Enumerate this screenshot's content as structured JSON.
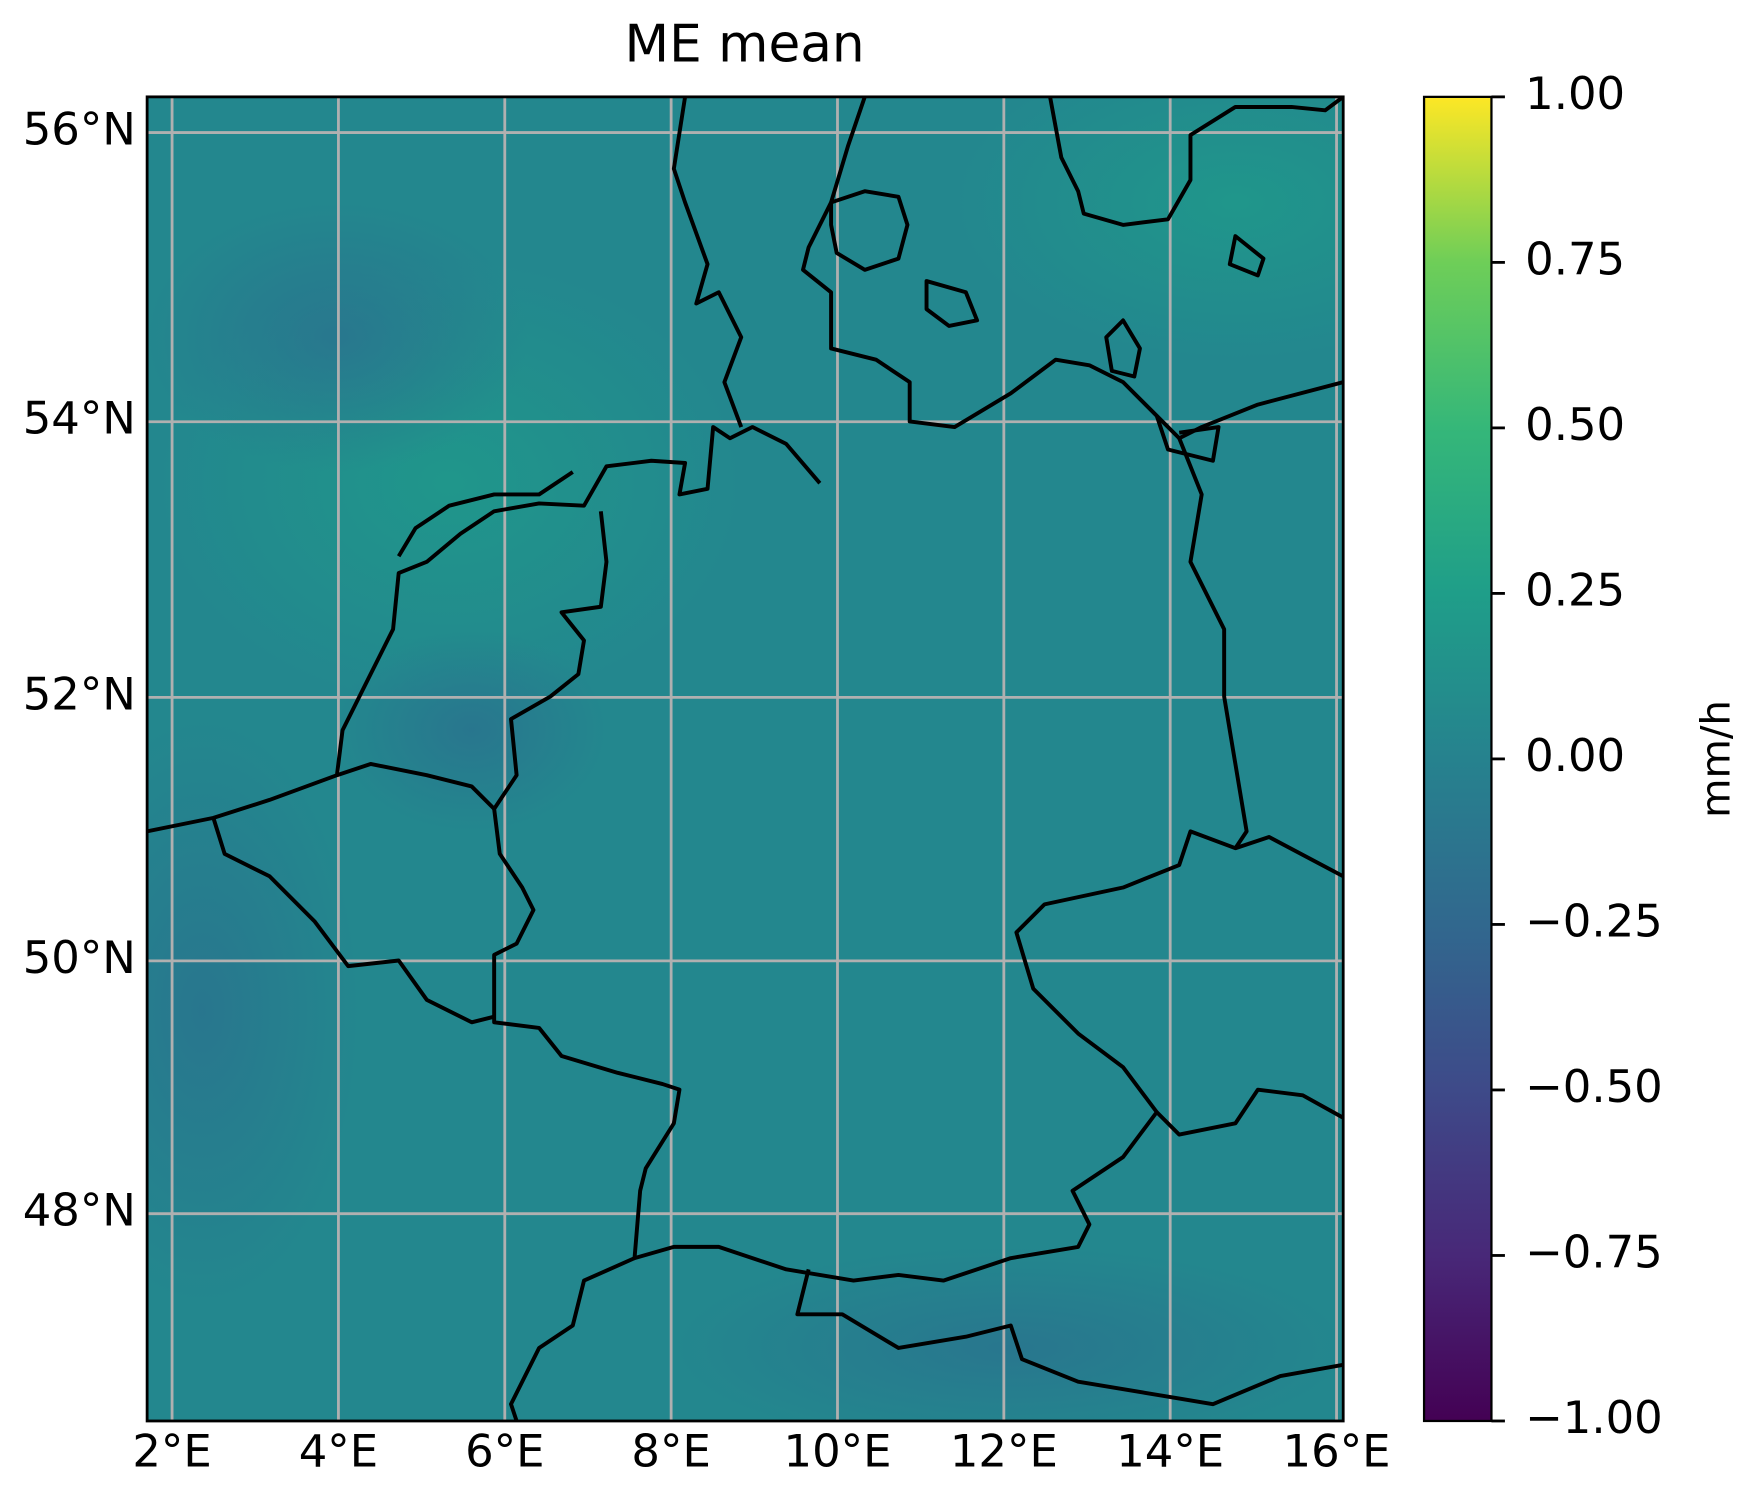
{
  "chart_data": {
    "type": "map",
    "title": "ME mean",
    "projection": "mercator",
    "xlim": [
      1.7,
      16.08
    ],
    "ylim": [
      46.3,
      56.24
    ],
    "xticks": [
      {
        "value": 2,
        "label": "2°E"
      },
      {
        "value": 4,
        "label": "4°E"
      },
      {
        "value": 6,
        "label": "6°E"
      },
      {
        "value": 8,
        "label": "8°E"
      },
      {
        "value": 10,
        "label": "10°E"
      },
      {
        "value": 12,
        "label": "12°E"
      },
      {
        "value": 14,
        "label": "14°E"
      },
      {
        "value": 16,
        "label": "16°E"
      }
    ],
    "yticks": [
      {
        "value": 48,
        "label": "48°N"
      },
      {
        "value": 50,
        "label": "50°N"
      },
      {
        "value": 52,
        "label": "52°N"
      },
      {
        "value": 54,
        "label": "54°N"
      },
      {
        "value": 56,
        "label": "56°N"
      }
    ],
    "grid": true,
    "colorbar": {
      "label": "mm/h",
      "lim": [
        -1,
        1
      ],
      "ticks": [
        {
          "value": -1,
          "label": "−1.00"
        },
        {
          "value": -0.75,
          "label": "−0.75"
        },
        {
          "value": -0.5,
          "label": "−0.50"
        },
        {
          "value": -0.25,
          "label": "−0.25"
        },
        {
          "value": 0,
          "label": "0.00"
        },
        {
          "value": 0.25,
          "label": "0.25"
        },
        {
          "value": 0.5,
          "label": "0.50"
        },
        {
          "value": 0.75,
          "label": "0.75"
        },
        {
          "value": 1,
          "label": "1.00"
        }
      ]
    }
  }
}
